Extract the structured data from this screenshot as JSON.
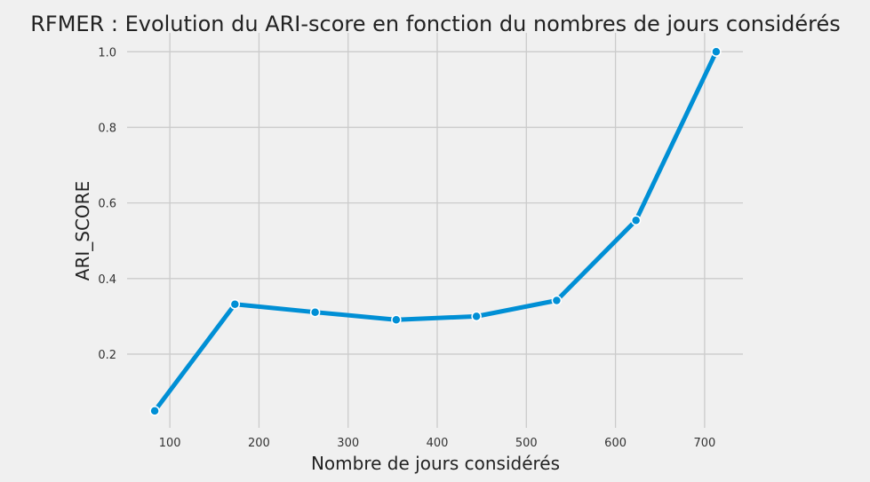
{
  "chart_data": {
    "type": "line",
    "title": "RFMER : Evolution du ARI-score en fonction du nombres de jours considérés",
    "xlabel": "Nombre de jours considérés",
    "ylabel": "ARI_SCORE",
    "x": [
      83,
      173,
      263,
      354,
      444,
      534,
      623,
      713
    ],
    "series": [
      {
        "values": [
          0.05,
          0.332,
          0.311,
          0.291,
          0.3,
          0.342,
          0.554,
          1.0
        ]
      }
    ],
    "xlim": [
      52,
      743
    ],
    "ylim": [
      0.005,
      1.05
    ],
    "xticks": [
      100,
      200,
      300,
      400,
      500,
      600,
      700
    ],
    "yticks": [
      0.2,
      0.4,
      0.6,
      0.8,
      1.0
    ],
    "grid": true,
    "line_color": "#008fd5",
    "background_color": "#f0f0f0",
    "grid_color": "#cbcbcb"
  }
}
